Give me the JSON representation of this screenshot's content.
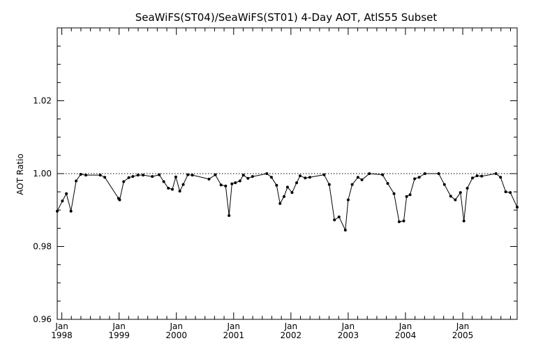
{
  "chart_data": {
    "type": "line",
    "title": "SeaWiFS(ST04)/SeaWiFS(ST01) 4-Day AOT, AtlS55 Subset",
    "xlabel": "",
    "ylabel": "AOT Ratio",
    "ylim": [
      0.96,
      1.04
    ],
    "y_ticks": [
      0.96,
      0.98,
      1.0,
      1.02
    ],
    "y_tick_labels": [
      "0.96",
      "0.98",
      "1.00",
      "1.02"
    ],
    "xlim": [
      1997.92,
      2005.95
    ],
    "x_ticks": [
      1998.0,
      1999.0,
      2000.0,
      2001.0,
      2002.0,
      2003.0,
      2004.0,
      2005.0
    ],
    "x_tick_labels": [
      {
        "month": "Jan",
        "year": "1998"
      },
      {
        "month": "Jan",
        "year": "1999"
      },
      {
        "month": "Jan",
        "year": "2000"
      },
      {
        "month": "Jan",
        "year": "2001"
      },
      {
        "month": "Jan",
        "year": "2002"
      },
      {
        "month": "Jan",
        "year": "2003"
      },
      {
        "month": "Jan",
        "year": "2004"
      },
      {
        "month": "Jan",
        "year": "2005"
      }
    ],
    "reference_line": 1.0,
    "grid": false,
    "series": [
      {
        "x": [
          1997.92,
          1998.01,
          1998.08,
          1998.16,
          1998.25,
          1998.33,
          1998.42,
          1998.67,
          1998.75,
          1998.99,
          1999.01,
          1999.08,
          1999.17,
          1999.24,
          1999.33,
          1999.42,
          1999.58,
          1999.7,
          1999.78,
          1999.86,
          1999.93,
          1999.99,
          2000.06,
          2000.12,
          2000.2,
          2000.28,
          2000.57,
          2000.68,
          2000.78,
          2000.86,
          2000.92,
          2000.97,
          2001.03,
          2001.11,
          2001.17,
          2001.25,
          2001.33,
          2001.58,
          2001.66,
          2001.75,
          2001.81,
          2001.88,
          2001.94,
          2002.02,
          2002.1,
          2002.16,
          2002.25,
          2002.33,
          2002.58,
          2002.67,
          2002.76,
          2002.84,
          2002.95,
          2003.0,
          2003.07,
          2003.17,
          2003.24,
          2003.37,
          2003.6,
          2003.69,
          2003.8,
          2003.89,
          2003.97,
          2004.02,
          2004.08,
          2004.16,
          2004.24,
          2004.34,
          2004.58,
          2004.68,
          2004.79,
          2004.87,
          2004.96,
          2005.02,
          2005.08,
          2005.17,
          2005.25,
          2005.33,
          2005.58,
          2005.66,
          2005.75,
          2005.83,
          2005.95
        ],
        "values": [
          0.9897,
          0.9925,
          0.9945,
          0.9897,
          0.998,
          0.9998,
          0.9996,
          0.9996,
          0.999,
          0.9932,
          0.9928,
          0.9978,
          0.9989,
          0.9992,
          0.9996,
          0.9996,
          0.9992,
          0.9997,
          0.9978,
          0.996,
          0.9957,
          0.9991,
          0.9952,
          0.997,
          0.9997,
          0.9996,
          0.9985,
          0.9997,
          0.9969,
          0.9966,
          0.9885,
          0.9972,
          0.9975,
          0.998,
          0.9996,
          0.9987,
          0.9992,
          1.0,
          0.999,
          0.9968,
          0.9918,
          0.9937,
          0.9963,
          0.9948,
          0.9975,
          0.9994,
          0.9988,
          0.999,
          0.9997,
          0.997,
          0.9873,
          0.9881,
          0.9845,
          0.9928,
          0.997,
          0.999,
          0.9983,
          1.0,
          0.9997,
          0.9973,
          0.9945,
          0.9868,
          0.987,
          0.9937,
          0.9942,
          0.9986,
          0.999,
          1.0,
          1.0,
          0.997,
          0.9938,
          0.9928,
          0.9948,
          0.987,
          0.996,
          0.9988,
          0.9994,
          0.9993,
          1.0,
          0.999,
          0.995,
          0.9948,
          0.9908
        ]
      }
    ]
  }
}
